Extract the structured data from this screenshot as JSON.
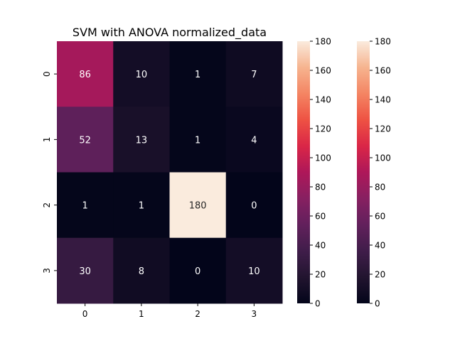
{
  "chart_data": {
    "type": "heatmap",
    "title": "SVM with ANOVA normalized_data",
    "xlabel": "",
    "ylabel": "",
    "x_categories": [
      "0",
      "1",
      "2",
      "3"
    ],
    "y_categories": [
      "0",
      "1",
      "2",
      "3"
    ],
    "matrix": [
      [
        86,
        10,
        1,
        7
      ],
      [
        52,
        13,
        1,
        4
      ],
      [
        1,
        1,
        180,
        0
      ],
      [
        30,
        8,
        0,
        10
      ]
    ],
    "vmin": 0,
    "vmax": 180,
    "colormap": "rocket",
    "colorbars": [
      {
        "ticks": [
          0,
          20,
          40,
          60,
          80,
          100,
          120,
          140,
          160,
          180
        ]
      },
      {
        "ticks": [
          0,
          20,
          40,
          60,
          80,
          100,
          120,
          140,
          160,
          180
        ]
      }
    ],
    "annotation_color_dark_cells": "#ffffff",
    "annotation_color_light_cells": "#262626",
    "grid": false
  }
}
